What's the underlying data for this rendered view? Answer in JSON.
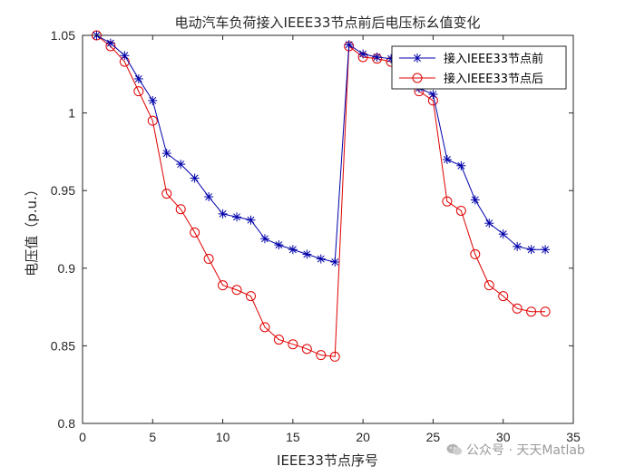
{
  "chart_data": {
    "type": "line",
    "title": "电动汽车负荷接入IEEE33节点前后电压标幺值变化",
    "xlabel": "IEEE33节点序号",
    "ylabel": "电压值（p.u.）",
    "xlim": [
      0,
      35
    ],
    "ylim": [
      0.8,
      1.05
    ],
    "xticks": [
      0,
      5,
      10,
      15,
      20,
      25,
      30,
      35
    ],
    "yticks": [
      0.8,
      0.85,
      0.9,
      0.95,
      1,
      1.05
    ],
    "xtick_labels": [
      "0",
      "5",
      "10",
      "15",
      "20",
      "25",
      "30",
      "35"
    ],
    "ytick_labels": [
      "0.8",
      "0.85",
      "0.9",
      "0.95",
      "1",
      "1.05"
    ],
    "grid": false,
    "legend_position": "top-right",
    "x": [
      1,
      2,
      3,
      4,
      5,
      6,
      7,
      8,
      9,
      10,
      11,
      12,
      13,
      14,
      15,
      16,
      17,
      18,
      19,
      20,
      21,
      22,
      23,
      24,
      25,
      26,
      27,
      28,
      29,
      30,
      31,
      32,
      33
    ],
    "series": [
      {
        "name": "接入IEEE33节点前",
        "color": "#0000aa",
        "marker": "asterisk",
        "values": [
          1.05,
          1.045,
          1.037,
          1.022,
          1.008,
          0.974,
          0.967,
          0.958,
          0.946,
          0.935,
          0.933,
          0.931,
          0.919,
          0.915,
          0.912,
          0.909,
          0.906,
          0.904,
          1.044,
          1.038,
          1.036,
          1.035,
          1.026,
          1.016,
          1.012,
          0.97,
          0.966,
          0.944,
          0.929,
          0.922,
          0.914,
          0.912,
          0.912
        ]
      },
      {
        "name": "接入IEEE33节点后",
        "color": "#e00000",
        "marker": "circle",
        "values": [
          1.05,
          1.043,
          1.033,
          1.014,
          0.995,
          0.948,
          0.938,
          0.923,
          0.906,
          0.889,
          0.886,
          0.882,
          0.862,
          0.854,
          0.851,
          0.848,
          0.844,
          0.843,
          1.043,
          1.036,
          1.035,
          1.033,
          1.023,
          1.014,
          1.008,
          0.943,
          0.937,
          0.909,
          0.889,
          0.882,
          0.874,
          0.872,
          0.872
        ]
      }
    ]
  },
  "watermark": {
    "text": "公众号 · 天天Matlab",
    "icon": "wechat-icon"
  }
}
